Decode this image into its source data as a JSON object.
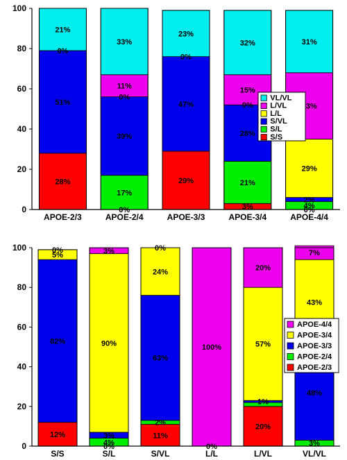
{
  "chart_data": [
    {
      "type": "bar",
      "stacked": true,
      "ylim": [
        0,
        100
      ],
      "yticks": [
        0,
        20,
        40,
        60,
        80,
        100
      ],
      "grid": false,
      "legend_position": "right-middle",
      "categories": [
        "APOE-2/3",
        "APOE-2/4",
        "APOE-3/3",
        "APOE-3/4",
        "APOE-4/4"
      ],
      "series": [
        {
          "name": "S/S",
          "color": "#ff0000",
          "values": [
            28,
            0,
            29,
            3,
            0
          ],
          "labels": [
            "28%",
            "0%",
            "29%",
            "3%",
            "0%"
          ]
        },
        {
          "name": "S/L",
          "color": "#00ee00",
          "values": [
            0,
            17,
            0,
            21,
            4
          ],
          "labels": [
            "",
            "17%",
            "",
            "21%",
            "4%"
          ]
        },
        {
          "name": "S/VL",
          "color": "#0000ee",
          "values": [
            51,
            39,
            47,
            28,
            2
          ],
          "labels": [
            "51%",
            "39%",
            "47%",
            "28%",
            "2%"
          ]
        },
        {
          "name": "L/L",
          "color": "#ffff00",
          "values": [
            0,
            0,
            0,
            0,
            29
          ],
          "labels": [
            "0%",
            "0%",
            "0%",
            "0%",
            "29%"
          ]
        },
        {
          "name": "L/VL",
          "color": "#ee00ee",
          "values": [
            0,
            11,
            0,
            15,
            33
          ],
          "labels": [
            "",
            "11%",
            "",
            "15%",
            "33%"
          ]
        },
        {
          "name": "VL/VL",
          "color": "#00eeee",
          "values": [
            21,
            33,
            23,
            32,
            31
          ],
          "labels": [
            "21%",
            "33%",
            "23%",
            "32%",
            "31%"
          ]
        }
      ]
    },
    {
      "type": "bar",
      "stacked": true,
      "ylim": [
        0,
        100
      ],
      "yticks": [
        0,
        20,
        40,
        60,
        80,
        100
      ],
      "grid": false,
      "legend_position": "right-middle",
      "categories": [
        "S/S",
        "S/L",
        "S/VL",
        "L/L",
        "L/VL",
        "VL/VL"
      ],
      "series": [
        {
          "name": "APOE-2/3",
          "color": "#ff0000",
          "values": [
            12,
            0,
            11,
            0,
            20,
            0
          ],
          "labels": [
            "12%",
            "0%",
            "11%",
            "0%",
            "20%",
            ""
          ]
        },
        {
          "name": "APOE-2/4",
          "color": "#00ee00",
          "values": [
            0,
            4,
            2,
            0,
            2,
            3
          ],
          "labels": [
            "",
            "4%",
            "2%",
            "",
            "",
            "3%"
          ]
        },
        {
          "name": "APOE-3/3",
          "color": "#0000ee",
          "values": [
            82,
            3,
            63,
            0,
            1,
            48
          ],
          "labels": [
            "82%",
            "3%",
            "63%",
            "",
            "1%",
            "48%"
          ]
        },
        {
          "name": "APOE-3/4",
          "color": "#ffff00",
          "values": [
            5,
            90,
            24,
            0,
            57,
            43
          ],
          "labels": [
            "5%",
            "90%",
            "24%",
            "",
            "57%",
            "43%"
          ]
        },
        {
          "name": "APOE-4/4",
          "color": "#ee00ee",
          "values": [
            0,
            3,
            0,
            100,
            20,
            7
          ],
          "labels": [
            "0%",
            "3%",
            "0%",
            "100%",
            "20%",
            "7%"
          ]
        }
      ]
    }
  ]
}
